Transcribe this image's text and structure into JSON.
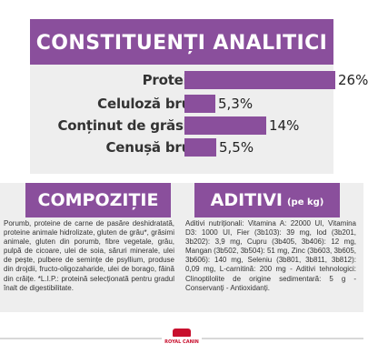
{
  "colors": {
    "accent": "#8a4f9c",
    "panel_bg": "#eeeeee",
    "text": "#333333",
    "logo": "#c8102e"
  },
  "analytical": {
    "title": "CONSTITUENȚI ANALITICI",
    "rows": [
      {
        "label": "Proteină",
        "value": "26%",
        "percent": 26
      },
      {
        "label": "Celuloză brută",
        "value": "5,3%",
        "percent": 5.3
      },
      {
        "label": "Conținut de grăsimi",
        "value": "14%",
        "percent": 14
      },
      {
        "label": "Cenușă brută",
        "value": "5,5%",
        "percent": 5.5
      }
    ]
  },
  "composition": {
    "title": "COMPOZIȚIE",
    "text": "Porumb, proteine de carne de pasăre deshidratată, proteine animale hidrolizate, gluten de grâu*, grăsimi animale, gluten din porumb, fibre vegetale, grâu, pulpă de cicoare, ulei de soia, săruri minerale, ulei de pește, pulbere de semințe de psyllium, produse din drojdii, fructo-oligozaharide, ulei de borago, făină din crăițe. *L.I.P.: proteină selecționată pentru gradul înalt de digestibilitate."
  },
  "additives": {
    "title": "ADITIVI",
    "unit": "(pe kg)",
    "text": "Aditivi nutriționali: Vitamina A: 22000 UI, Vitamina D3: 1000 UI, Fier (3b103): 39 mg, Iod (3b201, 3b202): 3,9 mg, Cupru (3b405, 3b406): 12 mg, Mangan (3b502, 3b504): 51 mg, Zinc (3b603, 3b605, 3b606): 140 mg, Seleniu (3b801, 3b811, 3b812): 0,09 mg, L-carnitină: 200 mg - Aditivi tehnologici: Clinoptilolite de origine sedimentară: 5 g - Conservanți - Antioxidanți."
  },
  "footer": {
    "logo": "ROYAL CANIN",
    "logo_icon": "crown-icon"
  }
}
